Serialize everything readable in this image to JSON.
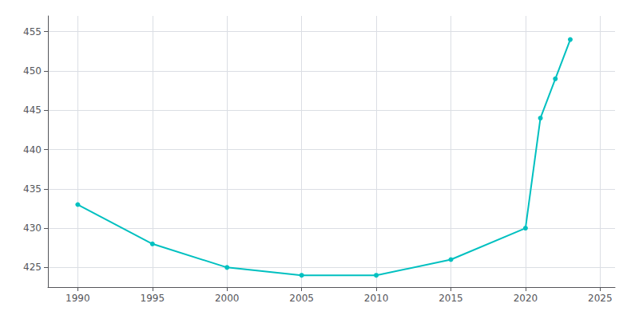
{
  "chart_data": {
    "type": "line",
    "x": [
      1990,
      1995,
      2000,
      2005,
      2010,
      2015,
      2020,
      2021,
      2022,
      2023
    ],
    "values": [
      433,
      428,
      425,
      424,
      424,
      426,
      430,
      444,
      449,
      454
    ],
    "color": "#00C0C0",
    "marker": "o",
    "xlim": [
      1988,
      2026
    ],
    "ylim": [
      422.5,
      457
    ],
    "xticks": [
      1990,
      1995,
      2000,
      2005,
      2010,
      2015,
      2020,
      2025
    ],
    "yticks": [
      425,
      430,
      435,
      440,
      445,
      450,
      455
    ],
    "grid": true
  }
}
